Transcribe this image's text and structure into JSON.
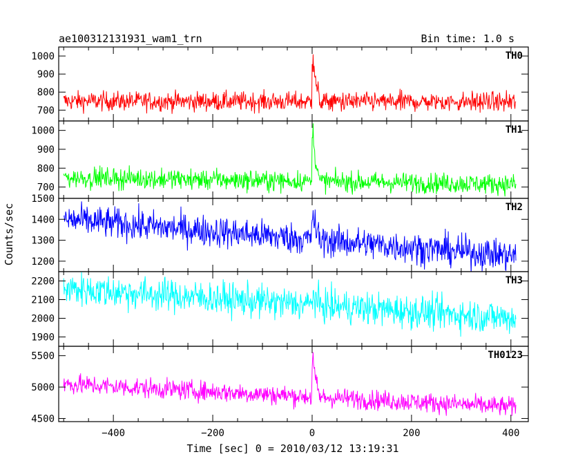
{
  "chart_data": {
    "type": "line",
    "title": "ae100312131931_wam1_trn",
    "bin_time_label": "Bin time: 1.0 s",
    "xlabel": "Time [sec] 0 = 2010/03/12 13:19:31",
    "ylabel": "Counts/sec",
    "xlim": [
      -510,
      435
    ],
    "x_ticks": [
      -400,
      -200,
      0,
      200,
      400
    ],
    "x_tick_labels": [
      "−400",
      "−200",
      "0",
      "200",
      "400"
    ],
    "x_range": [
      -500,
      410
    ],
    "burst_time": 0,
    "panels": [
      {
        "name": "TH0",
        "color": "#ff0000",
        "ylim": [
          640,
          1050
        ],
        "y_ticks": [
          700,
          800,
          900,
          1000
        ],
        "y_tick_labels": [
          "700",
          "800",
          "900",
          "1000"
        ],
        "baseline_start": 750,
        "baseline_end": 745,
        "noise": 27,
        "burst_peak": 1010
      },
      {
        "name": "TH1",
        "color": "#00ff00",
        "ylim": [
          640,
          1050
        ],
        "y_ticks": [
          700,
          800,
          900,
          1000
        ],
        "y_tick_labels": [
          "700",
          "800",
          "900",
          "1000"
        ],
        "baseline_start": 750,
        "baseline_end": 715,
        "noise": 27,
        "burst_peak": 1000
      },
      {
        "name": "TH2",
        "color": "#0000ff",
        "ylim": [
          1150,
          1500
        ],
        "y_ticks": [
          1200,
          1300,
          1400,
          1500
        ],
        "y_tick_labels": [
          "1200",
          "1300",
          "1400",
          "1500"
        ],
        "baseline_start": 1400,
        "baseline_end": 1225,
        "noise": 38,
        "burst_peak": 1430
      },
      {
        "name": "TH3",
        "color": "#00ffff",
        "ylim": [
          1850,
          2250
        ],
        "y_ticks": [
          1900,
          2000,
          2100,
          2200
        ],
        "y_tick_labels": [
          "1900",
          "2000",
          "2100",
          "2200"
        ],
        "baseline_start": 2160,
        "baseline_end": 2000,
        "noise": 45,
        "burst_peak": 2130
      },
      {
        "name": "TH0123",
        "color": "#ff00ff",
        "ylim": [
          4450,
          5650
        ],
        "y_ticks": [
          4500,
          5000,
          5500
        ],
        "y_tick_labels": [
          "4500",
          "5000",
          "5500"
        ],
        "baseline_start": 5050,
        "baseline_end": 4680,
        "noise": 80,
        "burst_peak": 5450
      }
    ]
  }
}
